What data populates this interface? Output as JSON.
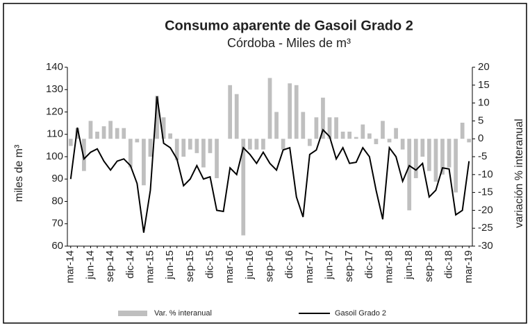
{
  "chart_data": {
    "type": "bar",
    "title": "Consumo aparente de Gasoil Grado 2",
    "subtitle": "Córdoba - Miles de m³",
    "y_label": "miles de m³",
    "y2_label": "variación % interanual",
    "categories": [
      "mar-14",
      null,
      null,
      "jun-14",
      null,
      null,
      "sep-14",
      null,
      null,
      "dic-14",
      null,
      null,
      "mar-15",
      null,
      null,
      "jun-15",
      null,
      null,
      "sep-15",
      null,
      null,
      "dic-15",
      null,
      null,
      "mar-16",
      null,
      null,
      "jun-16",
      null,
      null,
      "sep-16",
      null,
      null,
      "dic-16",
      null,
      null,
      "mar-17",
      null,
      null,
      "jun-17",
      null,
      null,
      "sep-17",
      null,
      null,
      "dic-17",
      null,
      null,
      "mar-18",
      null,
      null,
      "jun-18",
      null,
      null,
      "sep-18",
      null,
      null,
      "dic-18",
      null,
      null,
      "mar-19"
    ],
    "series": [
      {
        "name": "Var. % interanual",
        "type": "bar",
        "axis": "y2",
        "color": "#bfbfbf",
        "values": [
          -2,
          3,
          -9,
          5,
          2,
          3.5,
          5,
          3,
          3,
          -8,
          -1,
          -13,
          -5,
          12,
          6,
          1.5,
          -6,
          -5,
          -3,
          -4,
          -8,
          -4,
          -11,
          0,
          15,
          12.5,
          -27,
          -3,
          -3,
          -3,
          17,
          7.5,
          -3,
          15.5,
          15,
          7.5,
          -2,
          6,
          11.5,
          6,
          6,
          2,
          2,
          0.5,
          4,
          1.5,
          -1.5,
          5,
          -1,
          3,
          -3,
          -20,
          -11,
          -5,
          -9,
          -12,
          -10,
          -8,
          -15,
          4.5,
          -1
        ]
      },
      {
        "name": "Gasoil Grado 2",
        "type": "line",
        "color": "#000000",
        "values": [
          90,
          113,
          99,
          102,
          103.5,
          98,
          94,
          98,
          99,
          96,
          88,
          66,
          85,
          127,
          106,
          104,
          99,
          87,
          90,
          96,
          90,
          91,
          76,
          75.5,
          95,
          92,
          104,
          101,
          97,
          102,
          97,
          94,
          103,
          104,
          82,
          73,
          101,
          103,
          112,
          109,
          99,
          104,
          97,
          97.5,
          104,
          100,
          85,
          72,
          104,
          100,
          89,
          96,
          94,
          97,
          82,
          85,
          95,
          94.5,
          74,
          76,
          98
        ]
      }
    ],
    "ylim": [
      60,
      140
    ],
    "yticks": [
      60,
      70,
      80,
      90,
      100,
      110,
      120,
      130,
      140
    ],
    "y2lim": [
      -30,
      20
    ],
    "y2ticks": [
      -30,
      -25,
      -20,
      -15,
      -10,
      -5,
      0,
      5,
      10,
      15,
      20
    ]
  }
}
